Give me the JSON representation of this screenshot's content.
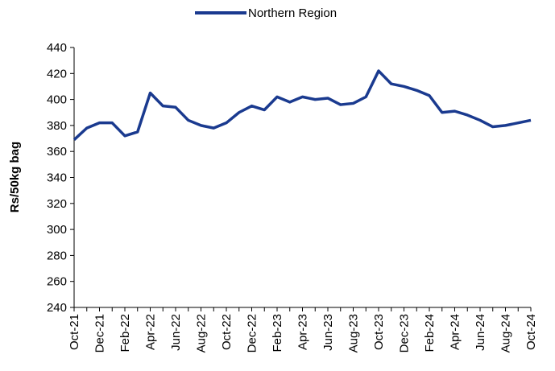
{
  "chart_data": {
    "type": "line",
    "y_label": "Rs/50kg bag",
    "categories": [
      "Oct-21",
      null,
      "Dec-21",
      null,
      "Feb-22",
      null,
      "Apr-22",
      null,
      "Jun-22",
      null,
      "Aug-22",
      null,
      "Oct-22",
      null,
      "Dec-22",
      null,
      "Feb-23",
      null,
      "Apr-23",
      null,
      "Jun-23",
      null,
      "Aug-23",
      null,
      "Oct-23",
      null,
      "Dec-23",
      null,
      "Feb-24",
      null,
      "Apr-24",
      null,
      "Jun-24",
      null,
      "Aug-24",
      null,
      "Oct-24"
    ],
    "series": [
      {
        "name": "Northern Region",
        "color": "#1a3a8f",
        "values": [
          369,
          378,
          382,
          382,
          372,
          375,
          405,
          395,
          394,
          384,
          380,
          378,
          382,
          390,
          395,
          392,
          402,
          398,
          402,
          400,
          401,
          396,
          397,
          402,
          422,
          412,
          410,
          407,
          403,
          390,
          391,
          388,
          384,
          379,
          380,
          382,
          384
        ]
      }
    ],
    "ylim": [
      240,
      440
    ],
    "yticks": [
      240,
      260,
      280,
      300,
      320,
      340,
      360,
      380,
      400,
      420,
      440
    ],
    "legend": "top"
  }
}
